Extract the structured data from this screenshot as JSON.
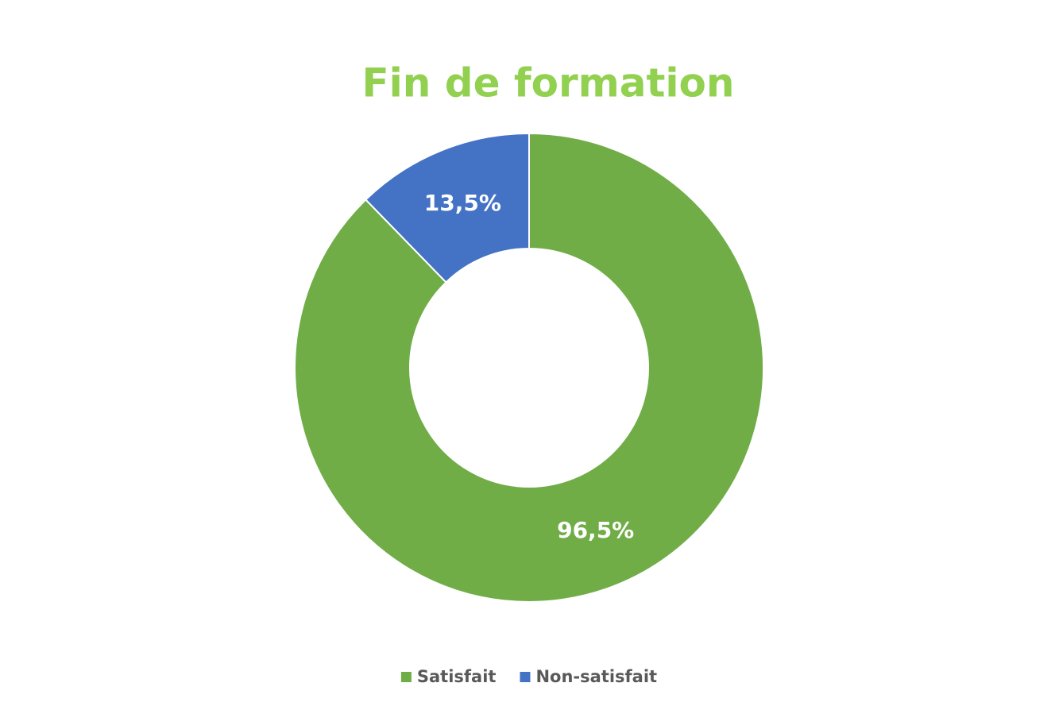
{
  "chart_data": {
    "type": "donut",
    "title": "Fin de formation",
    "categories": [
      "Satisfait",
      "Non-satisfait"
    ],
    "values": [
      96.5,
      13.5
    ],
    "value_labels": [
      "96,5%",
      "13,5%"
    ],
    "colors": [
      "#70ad47",
      "#4472c4"
    ],
    "legend": "bottom"
  }
}
